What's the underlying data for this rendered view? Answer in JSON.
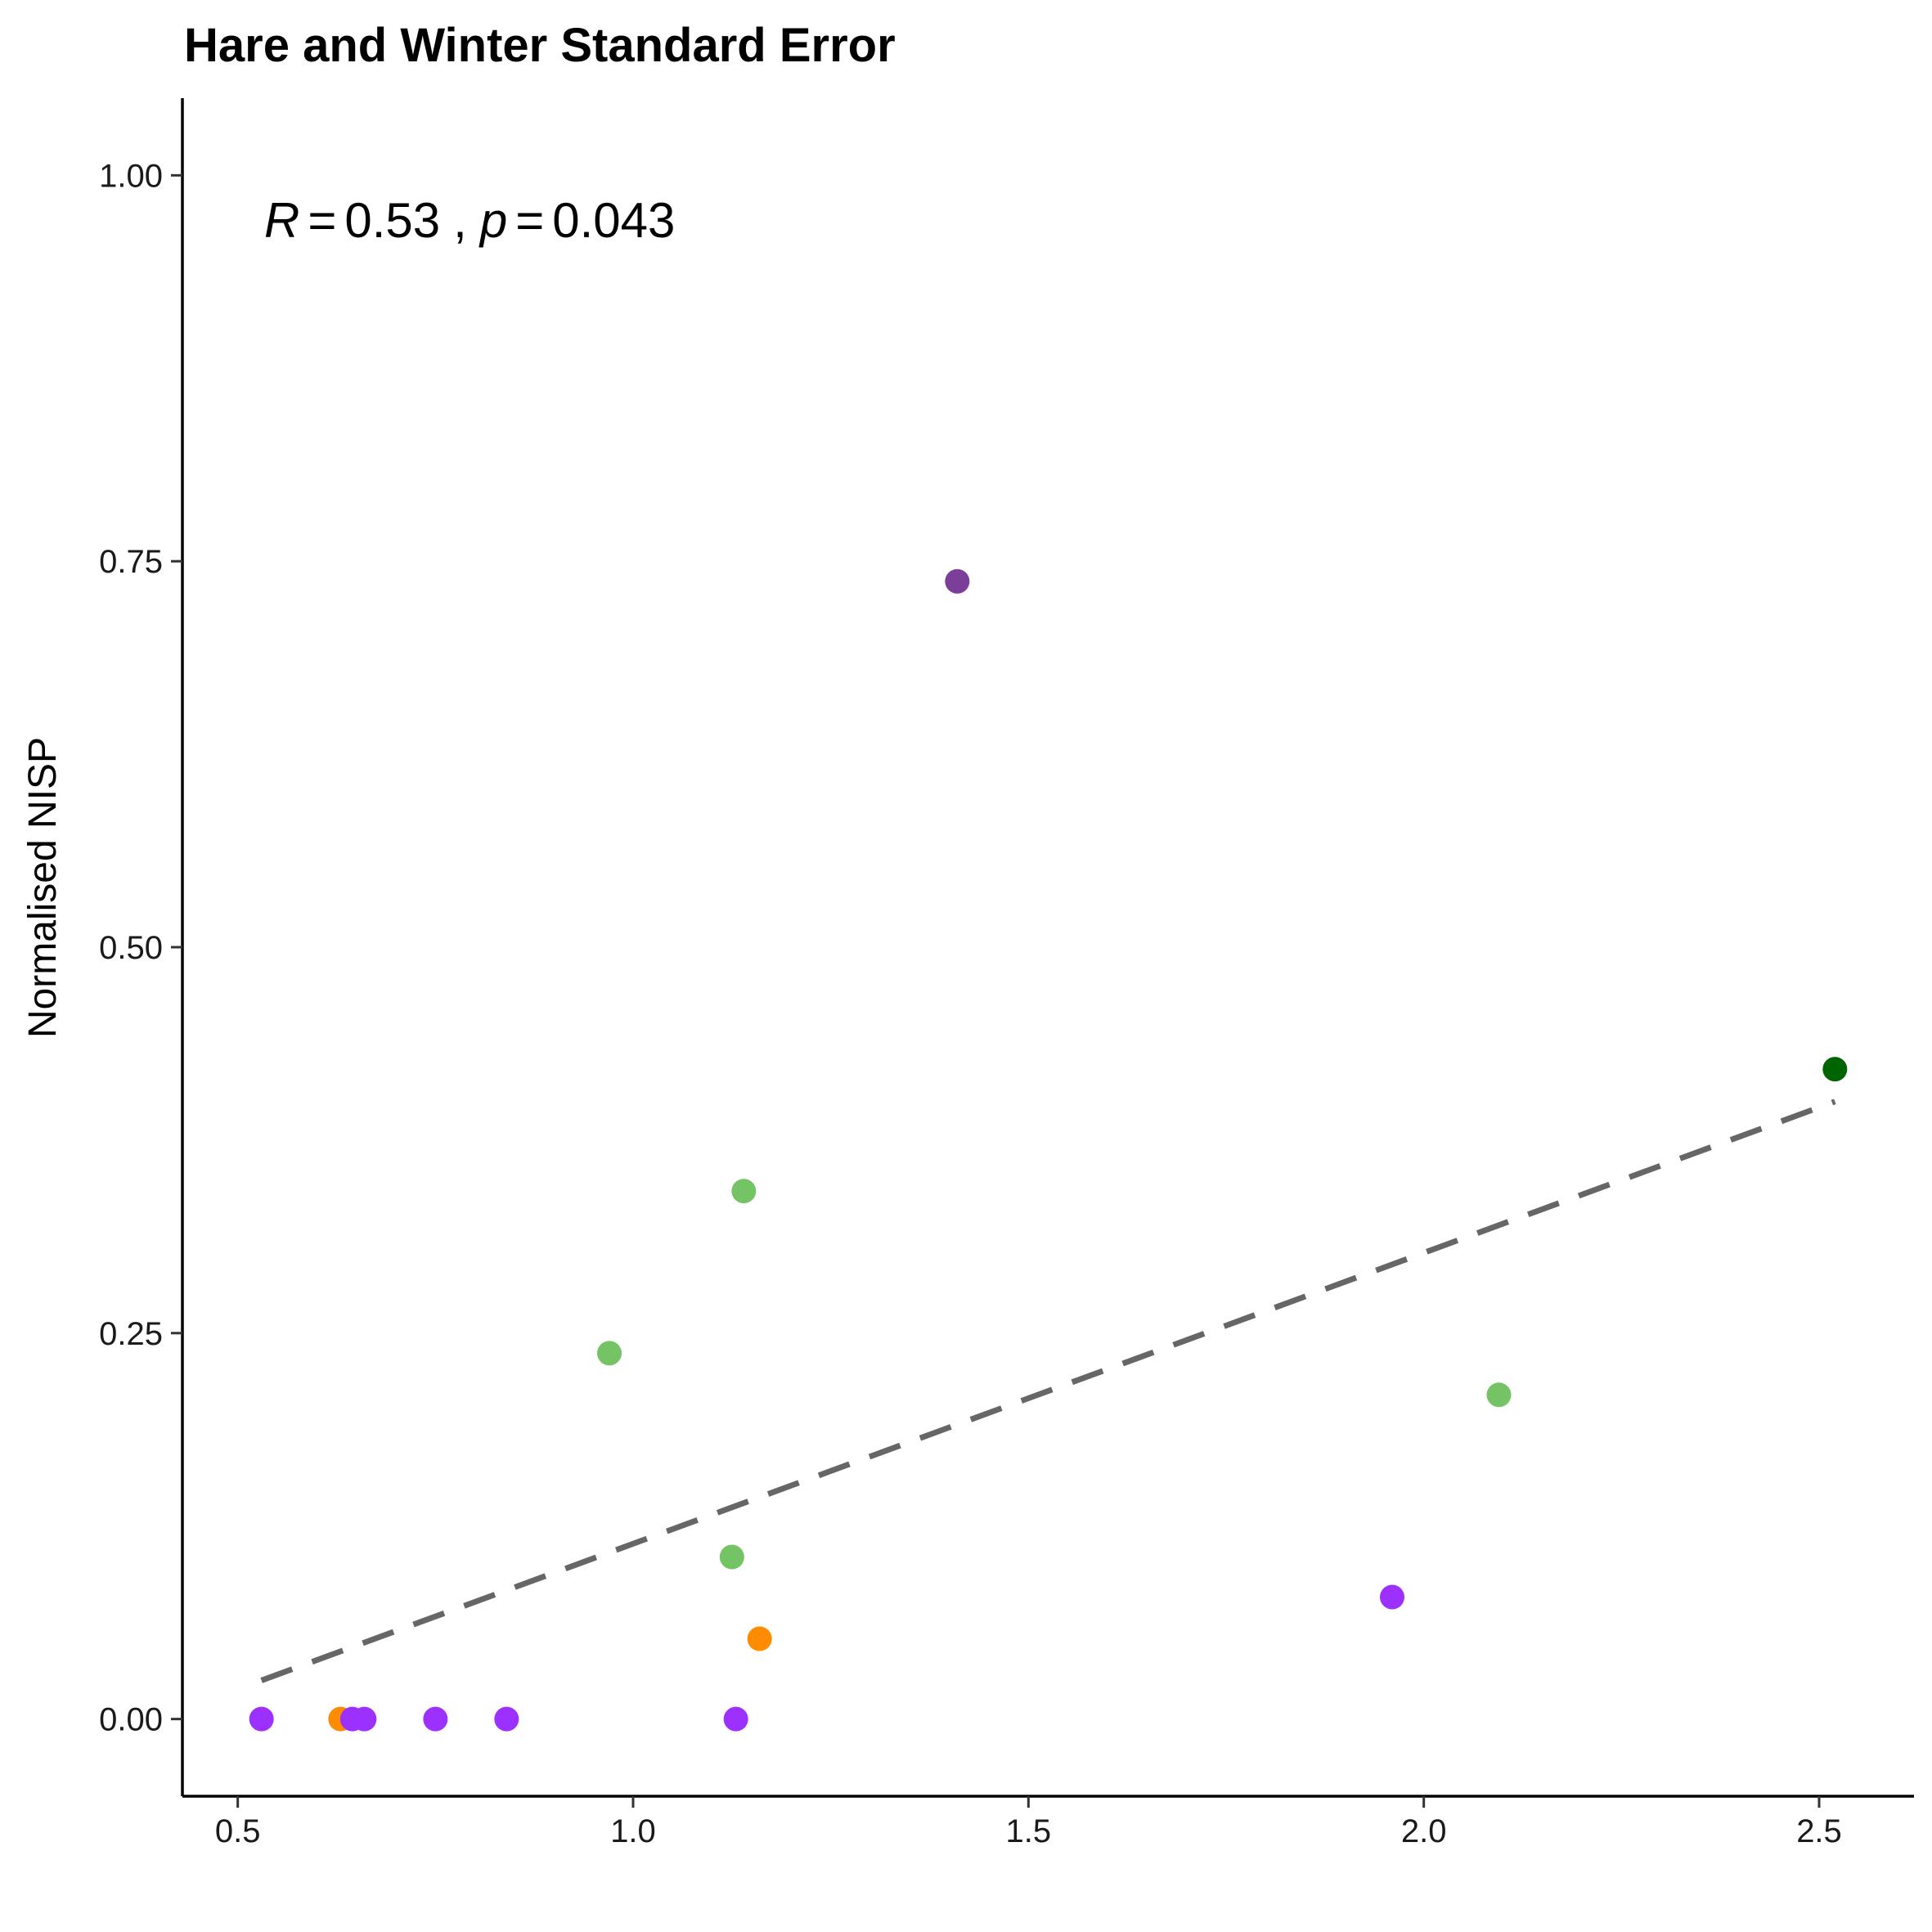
{
  "chart_data": {
    "type": "scatter",
    "title": "Hare and Winter Standard Error",
    "xlabel": "",
    "ylabel": "Normalised NISP",
    "xlim": [
      0.43,
      2.62
    ],
    "ylim": [
      -0.05,
      1.05
    ],
    "x_ticks": [
      0.5,
      1.0,
      1.5,
      2.0,
      2.5
    ],
    "x_tick_labels": [
      "0.5",
      "1.0",
      "1.5",
      "2.0",
      "2.5"
    ],
    "y_ticks": [
      0.0,
      0.25,
      0.5,
      0.75,
      1.0
    ],
    "y_tick_labels": [
      "0.00",
      "0.25",
      "0.50",
      "0.75",
      "1.00"
    ],
    "grid": false,
    "annotation": {
      "r_symbol": "R",
      "r_value": "0.53",
      "separator": ",",
      "p_symbol": "p",
      "p_value": "0.043",
      "equals": "="
    },
    "trend_line": {
      "style": "dashed",
      "color": "#666666",
      "x": [
        0.53,
        2.52
      ],
      "y": [
        0.025,
        0.4
      ]
    },
    "points": [
      {
        "x": 0.53,
        "y": 0.0,
        "color": "#9b30ff"
      },
      {
        "x": 0.63,
        "y": 0.0,
        "color": "#ff8c00"
      },
      {
        "x": 0.645,
        "y": 0.0,
        "color": "#9b30ff"
      },
      {
        "x": 0.66,
        "y": 0.0,
        "color": "#9b30ff"
      },
      {
        "x": 0.75,
        "y": 0.0,
        "color": "#9b30ff"
      },
      {
        "x": 0.84,
        "y": 0.0,
        "color": "#9b30ff"
      },
      {
        "x": 1.13,
        "y": 0.0,
        "color": "#9b30ff"
      },
      {
        "x": 1.16,
        "y": 0.052,
        "color": "#ff8c00"
      },
      {
        "x": 1.125,
        "y": 0.105,
        "color": "#74c365"
      },
      {
        "x": 0.97,
        "y": 0.237,
        "color": "#74c365"
      },
      {
        "x": 1.14,
        "y": 0.342,
        "color": "#74c365"
      },
      {
        "x": 1.41,
        "y": 0.737,
        "color": "#7b3f99"
      },
      {
        "x": 1.96,
        "y": 0.079,
        "color": "#9b30ff"
      },
      {
        "x": 2.095,
        "y": 0.21,
        "color": "#74c365"
      },
      {
        "x": 2.52,
        "y": 0.421,
        "color": "#006400"
      }
    ]
  }
}
